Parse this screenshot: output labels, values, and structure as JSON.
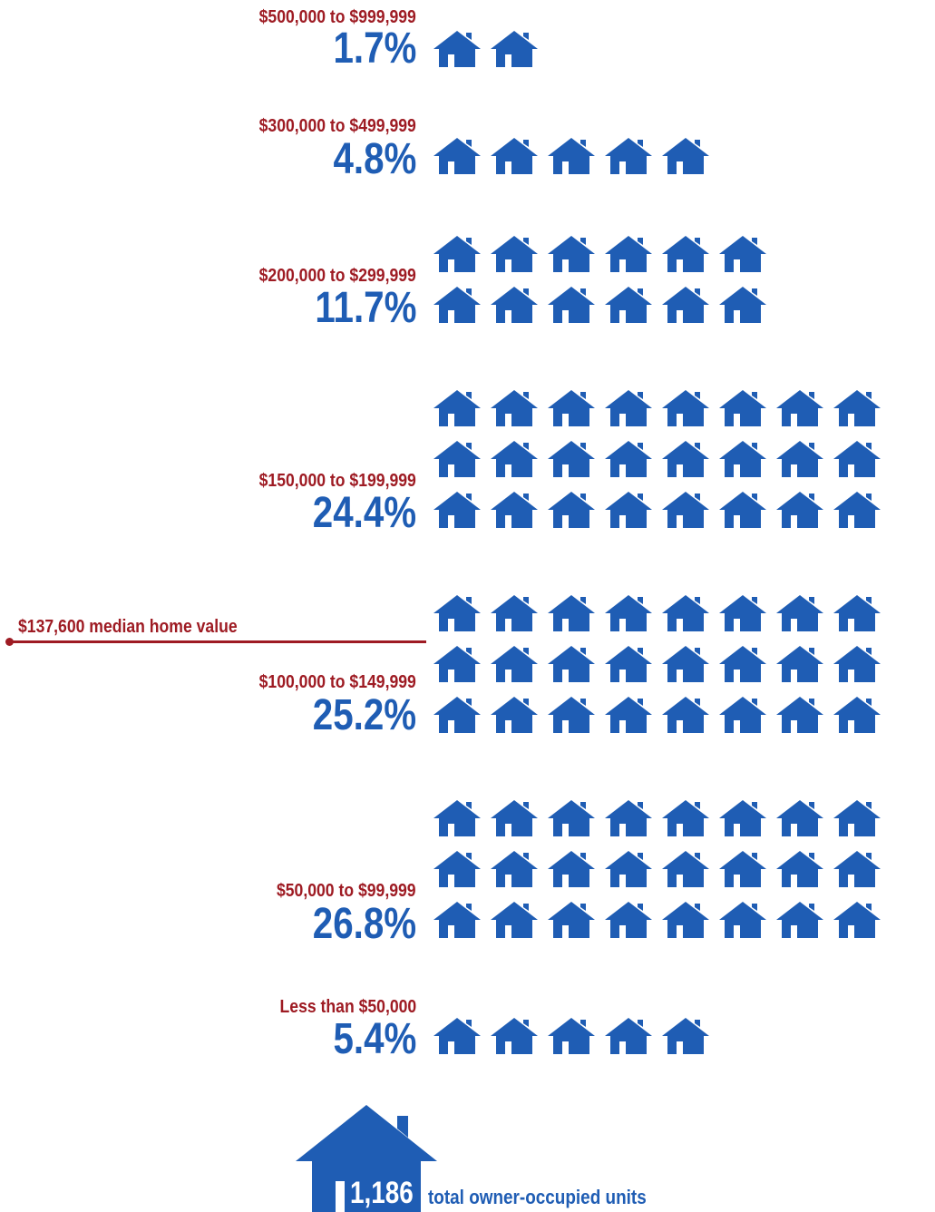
{
  "chart_data": {
    "type": "pictograph",
    "categories": [
      "$500,000 to $999,999",
      "$300,000 to $499,999",
      "$200,000 to $299,999",
      "$150,000 to $199,999",
      "$100,000 to $149,999",
      "$50,000 to $99,999",
      "Less than $50,000"
    ],
    "values": [
      1.7,
      4.8,
      11.7,
      24.4,
      25.2,
      26.8,
      5.4
    ],
    "value_labels": [
      "1.7%",
      "4.8%",
      "11.7%",
      "24.4%",
      "25.2%",
      "26.8%",
      "5.4%"
    ],
    "icon_counts": [
      2,
      5,
      12,
      24,
      25,
      27,
      5
    ],
    "icon": "house-icon",
    "median": {
      "label": "$137,600 median home value",
      "value": 137600
    },
    "total": {
      "value": "1,186",
      "label": "total owner-occupied units"
    },
    "colors": {
      "value": "#1f5db4",
      "label": "#9e1b23"
    }
  }
}
